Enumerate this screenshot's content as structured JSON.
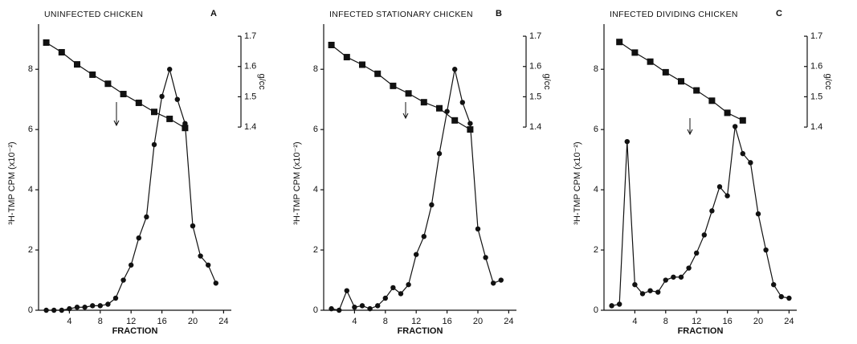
{
  "chart_data": [
    {
      "type": "line",
      "title": "UNINFECTED CHICKEN",
      "panel_label": "A",
      "x_label": "FRACTION",
      "y_label": "³H-TMP CPM (x10⁻²)",
      "y2_label": "g/cc",
      "xlim": [
        0,
        25
      ],
      "xticks": [
        4,
        8,
        12,
        16,
        20,
        24
      ],
      "ylim": [
        0,
        9.5
      ],
      "yticks": [
        0,
        2,
        4,
        6,
        8
      ],
      "y2lim": [
        0.795,
        1.74
      ],
      "y2ticks": [
        1.4,
        1.5,
        1.6,
        1.7
      ],
      "series": [
        {
          "marker": "circle",
          "color": "#111",
          "x": [
            1,
            2,
            3,
            4,
            5,
            6,
            7,
            8,
            9,
            10,
            11,
            12,
            13,
            14,
            15,
            16,
            17,
            18,
            19,
            20,
            21,
            22,
            23
          ],
          "values": [
            0,
            0,
            0,
            0.05,
            0.1,
            0.1,
            0.15,
            0.15,
            0.2,
            0.4,
            1.0,
            1.5,
            2.4,
            3.1,
            5.5,
            7.1,
            8.0,
            7.0,
            6.2,
            2.8,
            1.8,
            1.5,
            0.9
          ]
        },
        {
          "marker": "square",
          "color": "#111",
          "axis": "y2",
          "x": [
            1,
            3,
            5,
            7,
            9,
            11,
            13,
            15,
            17,
            19
          ],
          "values": [
            1.679,
            1.647,
            1.607,
            1.573,
            1.543,
            1.509,
            1.48,
            1.45,
            1.427,
            1.397
          ]
        }
      ]
    },
    {
      "type": "line",
      "title": "INFECTED STATIONARY CHICKEN",
      "panel_label": "B",
      "x_label": "FRACTION",
      "y_label": "³H-TMP CPM (x10⁻²)",
      "y2_label": "g/cc",
      "xlim": [
        0,
        25
      ],
      "xticks": [
        4,
        8,
        12,
        16,
        20,
        24
      ],
      "ylim": [
        0,
        9.5
      ],
      "yticks": [
        0,
        2,
        4,
        6,
        8
      ],
      "y2lim": [
        0.795,
        1.74
      ],
      "y2ticks": [
        1.4,
        1.5,
        1.6,
        1.7
      ],
      "series": [
        {
          "marker": "circle",
          "color": "#111",
          "x": [
            1,
            2,
            3,
            4,
            5,
            6,
            7,
            8,
            9,
            10,
            11,
            12,
            13,
            14,
            15,
            16,
            17,
            18,
            19,
            20,
            21,
            22,
            23
          ],
          "values": [
            0.05,
            0,
            0.65,
            0.1,
            0.15,
            0.05,
            0.15,
            0.4,
            0.75,
            0.55,
            0.85,
            1.85,
            2.45,
            3.5,
            5.2,
            6.6,
            8.0,
            6.9,
            6.2,
            2.7,
            1.75,
            0.9,
            1.0
          ]
        },
        {
          "marker": "square",
          "color": "#111",
          "axis": "y2",
          "x": [
            1,
            3,
            5,
            7,
            9,
            11,
            13,
            15,
            17,
            19
          ],
          "values": [
            1.671,
            1.631,
            1.606,
            1.576,
            1.536,
            1.511,
            1.482,
            1.462,
            1.422,
            1.392
          ]
        }
      ]
    },
    {
      "type": "line",
      "title": "INFECTED DIVIDING CHICKEN",
      "panel_label": "C",
      "x_label": "FRACTION",
      "y_label": "³H-TMP CPM (x10⁻²)",
      "y2_label": "g/cc",
      "xlim": [
        0,
        25
      ],
      "xticks": [
        4,
        8,
        12,
        16,
        20,
        24
      ],
      "ylim": [
        0,
        9.5
      ],
      "yticks": [
        0,
        2,
        4,
        6,
        8
      ],
      "y2lim": [
        0.795,
        1.74
      ],
      "y2ticks": [
        1.4,
        1.5,
        1.6,
        1.7
      ],
      "series": [
        {
          "marker": "circle",
          "color": "#111",
          "x": [
            1,
            2,
            3,
            4,
            5,
            6,
            7,
            8,
            9,
            10,
            11,
            12,
            13,
            14,
            15,
            16,
            17,
            18,
            19,
            20,
            21,
            22,
            23,
            24
          ],
          "values": [
            0.15,
            0.2,
            5.6,
            0.85,
            0.55,
            0.65,
            0.6,
            1.0,
            1.1,
            1.1,
            1.4,
            1.9,
            2.5,
            3.3,
            4.1,
            3.8,
            6.1,
            5.2,
            4.9,
            3.2,
            2.0,
            0.85,
            0.45,
            0.4
          ]
        },
        {
          "marker": "square",
          "color": "#111",
          "axis": "y2",
          "x": [
            2,
            4,
            6,
            8,
            10,
            12,
            14,
            16,
            18
          ],
          "values": [
            1.681,
            1.646,
            1.616,
            1.581,
            1.551,
            1.521,
            1.487,
            1.447,
            1.422
          ]
        }
      ]
    }
  ]
}
